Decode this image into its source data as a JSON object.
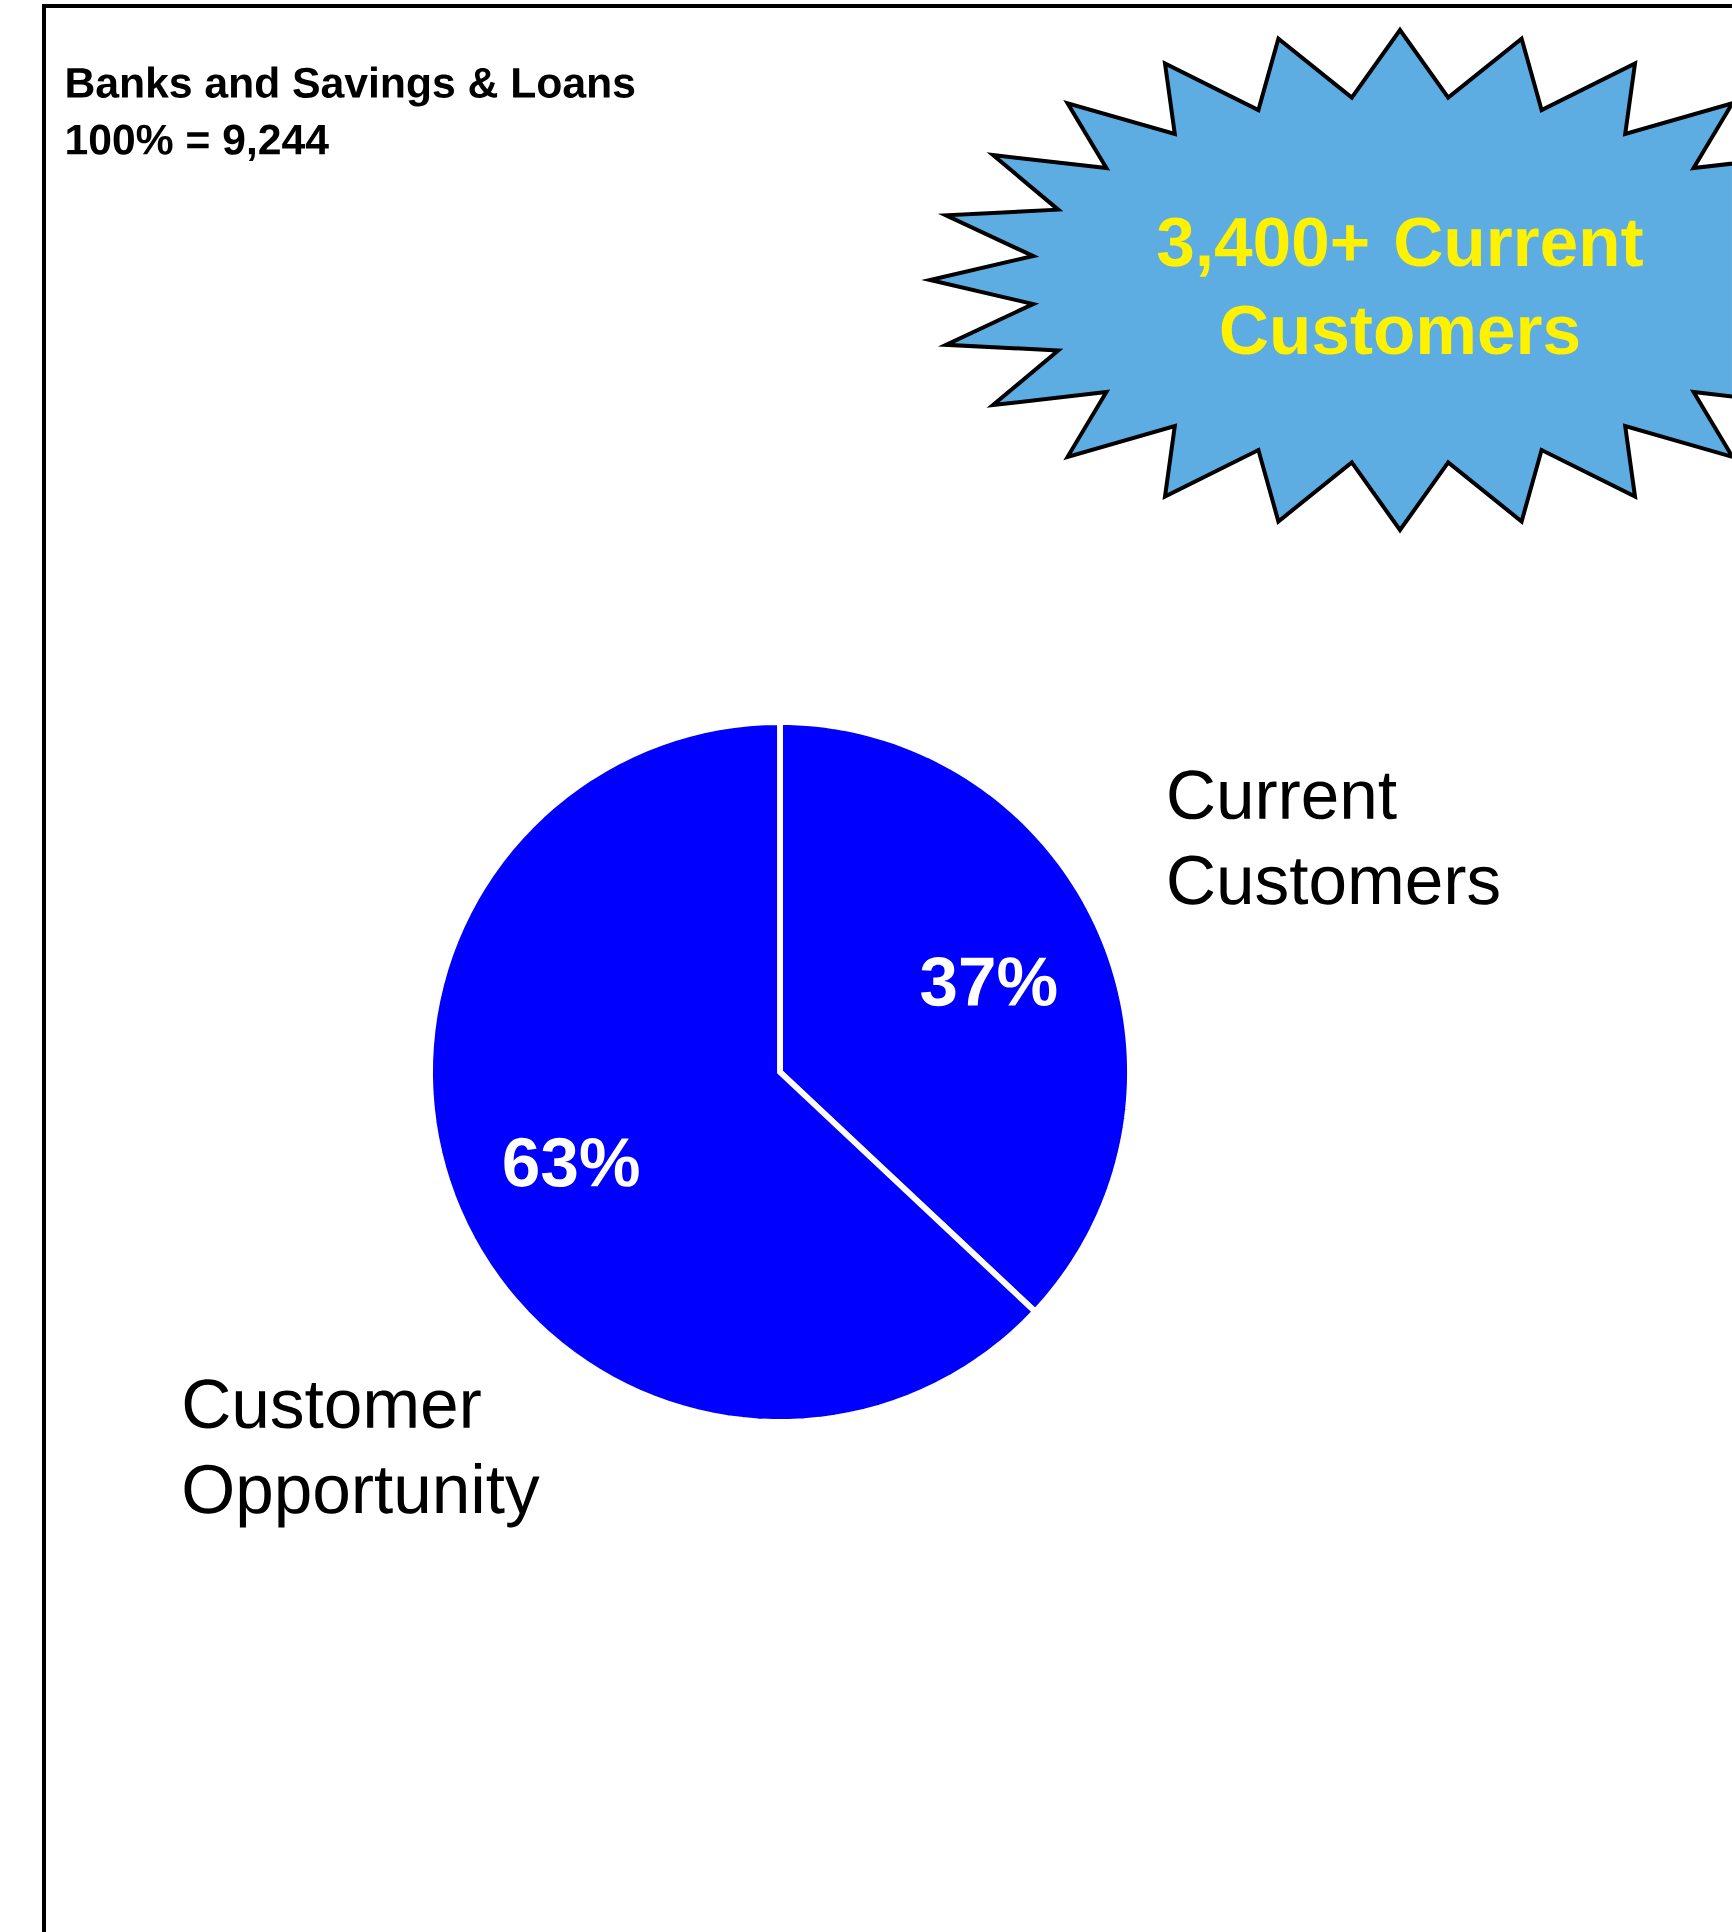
{
  "chart_data": {
    "type": "pie",
    "title": "Banks and Savings & Loans",
    "subtitle": "100% = 9,244",
    "categories": [
      "Current Customers",
      "Customer Opportunity"
    ],
    "values": [
      37,
      63
    ],
    "colors": [
      "#0000ff",
      "#0000ff"
    ],
    "value_labels": [
      "37%",
      "63%"
    ],
    "annotations": [
      "3,400+ Current Customers"
    ]
  }
}
